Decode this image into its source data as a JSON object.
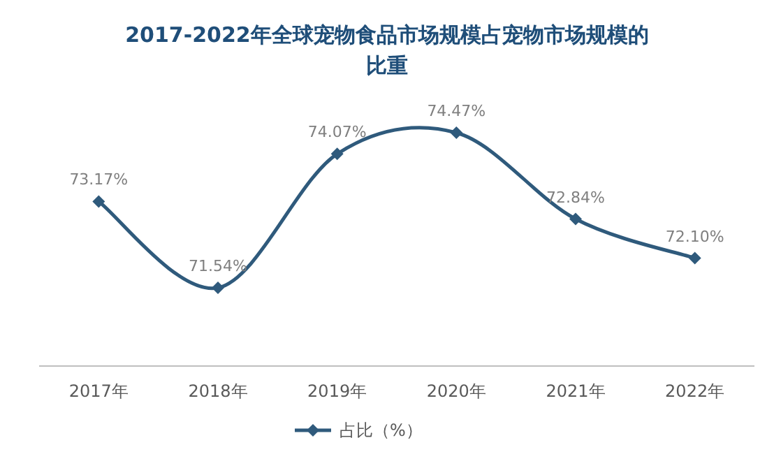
{
  "chart_data": {
    "type": "line",
    "title": "2017-2022年全球宠物食品市场规模占宠物市场规模的比重",
    "categories": [
      "2017年",
      "2018年",
      "2019年",
      "2020年",
      "2021年",
      "2022年"
    ],
    "series": [
      {
        "name": "占比（%）",
        "color": "#2f5a7c",
        "values": [
          73.17,
          71.54,
          74.07,
          74.47,
          72.84,
          72.1
        ],
        "value_labels": [
          "73.17%",
          "71.54%",
          "74.07%",
          "74.47%",
          "72.84%",
          "72.10%"
        ]
      }
    ],
    "marker": "diamond",
    "line_style": "solid",
    "legend": "bottom"
  }
}
